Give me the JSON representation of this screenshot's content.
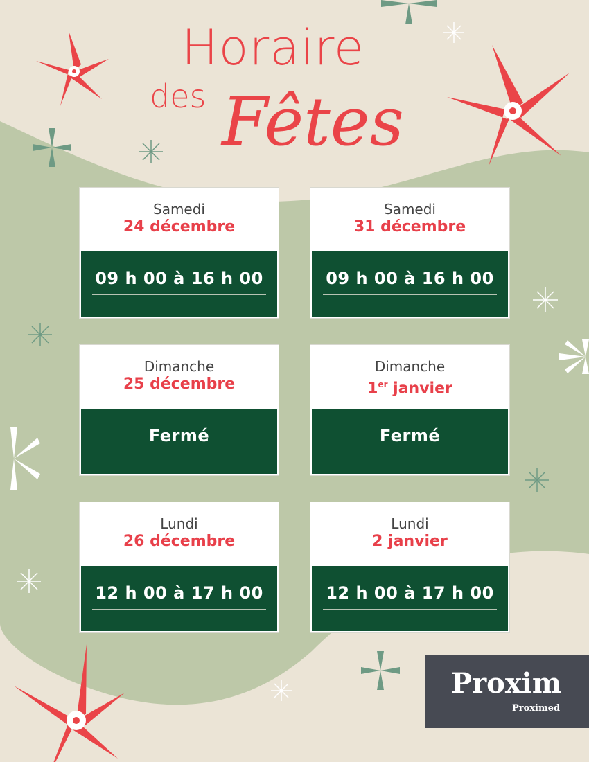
{
  "title": {
    "line1": "Horaire",
    "line2": "des",
    "line3": "Fêtes"
  },
  "colors": {
    "background": "#ebe4d6",
    "blob": "#bdc8a8",
    "red": "#ea4448",
    "dark_green": "#0f5032",
    "logo_bg": "#474a53",
    "logo_accent": "#8cc63f"
  },
  "schedule": [
    {
      "day": "Samedi",
      "date": "24 décembre",
      "date_sup": "",
      "hours": "09 h 00 à 16 h 00"
    },
    {
      "day": "Samedi",
      "date": "31 décembre",
      "date_sup": "",
      "hours": "09 h 00 à 16 h 00"
    },
    {
      "day": "Dimanche",
      "date": "25 décembre",
      "date_sup": "",
      "hours": "Fermé"
    },
    {
      "day": "Dimanche",
      "date": "1",
      "date_sup": "er",
      "date_rest": " janvier",
      "hours": "Fermé"
    },
    {
      "day": "Lundi",
      "date": "26 décembre",
      "date_sup": "",
      "hours": "12 h 00 à 17 h 00"
    },
    {
      "day": "Lundi",
      "date": "2 janvier",
      "date_sup": "",
      "hours": "12 h 00 à 17 h 00"
    }
  ],
  "logo": {
    "brand": "Proxim",
    "sub": "Proximed"
  }
}
